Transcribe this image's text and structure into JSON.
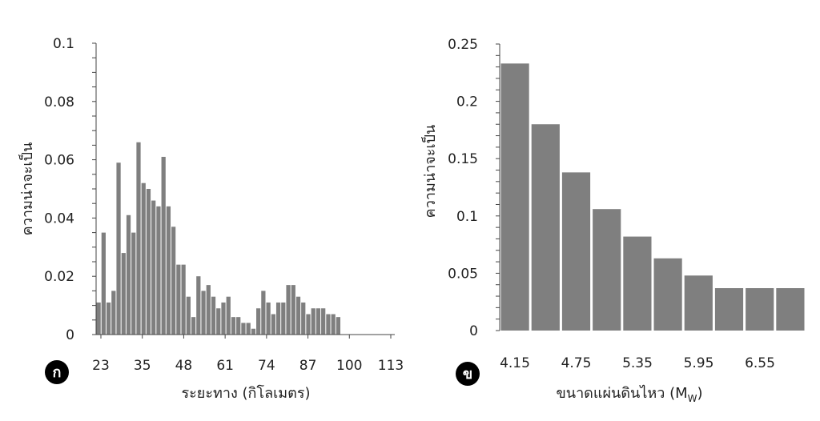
{
  "bar_color": "#7f7f7f",
  "chart_data": [
    {
      "type": "bar",
      "panel_label": "ก",
      "xlabel": "ระยะทาง (กิโลเมตร)",
      "ylabel": "ความน่าจะเป็น",
      "ylim": [
        0,
        0.1
      ],
      "y_ticks": [
        "0",
        "0.02",
        "0.04",
        "0.06",
        "0.08",
        "0.1"
      ],
      "x_tick_labels": [
        "23",
        "35",
        "48",
        "61",
        "74",
        "87",
        "100",
        "113"
      ],
      "x_range": [
        23,
        113
      ],
      "bin_width": 1.53,
      "values": [
        0.011,
        0.035,
        0.011,
        0.015,
        0.059,
        0.028,
        0.041,
        0.035,
        0.066,
        0.052,
        0.05,
        0.046,
        0.044,
        0.061,
        0.044,
        0.037,
        0.024,
        0.024,
        0.013,
        0.006,
        0.02,
        0.015,
        0.017,
        0.013,
        0.009,
        0.011,
        0.013,
        0.006,
        0.006,
        0.004,
        0.004,
        0.002,
        0.009,
        0.015,
        0.011,
        0.007,
        0.011,
        0.011,
        0.017,
        0.017,
        0.013,
        0.011,
        0.007,
        0.009,
        0.009,
        0.009,
        0.007,
        0.007,
        0.006
      ]
    },
    {
      "type": "bar",
      "panel_label": "ข",
      "xlabel": "ขนาดแผ่นดินไหว (M",
      "xlabel_sub": "W",
      "xlabel_tail": ")",
      "ylabel": "ความน่าจะเป็น",
      "ylim": [
        0,
        0.25
      ],
      "y_ticks": [
        "0",
        "0.05",
        "0.1",
        "0.15",
        "0.2",
        "0.25"
      ],
      "x_tick_labels": [
        "4.15",
        "4.75",
        "5.35",
        "5.95",
        "6.55"
      ],
      "x_start": 4.15,
      "bin_width": 0.3,
      "values": [
        0.233,
        0.18,
        0.138,
        0.106,
        0.082,
        0.063,
        0.048,
        0.037,
        0.037,
        0.037
      ]
    }
  ]
}
